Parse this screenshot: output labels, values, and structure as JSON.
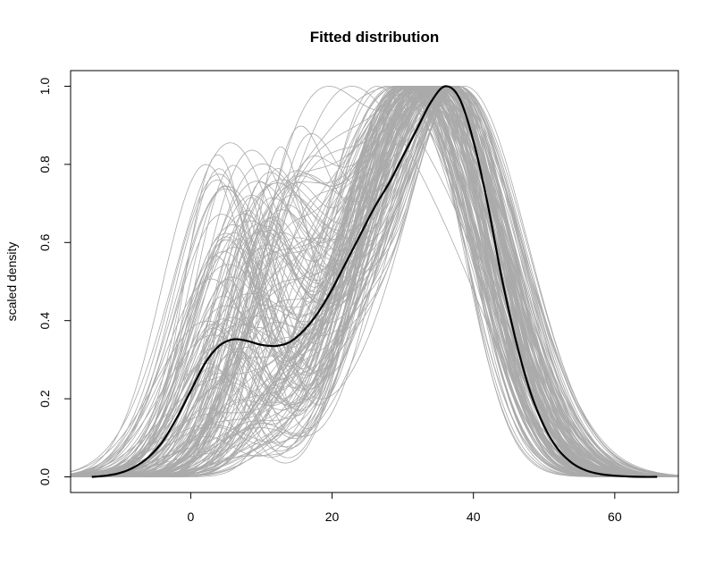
{
  "chart_data": {
    "type": "line",
    "title": "Fitted distribution",
    "xlabel": "",
    "ylabel": "scaled density",
    "xlim": [
      -17,
      69
    ],
    "ylim": [
      -0.04,
      1.04
    ],
    "x_ticks": [
      0,
      20,
      40,
      60
    ],
    "y_ticks": [
      0.0,
      0.2,
      0.4,
      0.6,
      0.8,
      1.0
    ],
    "x_tick_labels": [
      "0",
      "20",
      "40",
      "60"
    ],
    "y_tick_labels": [
      "0.0",
      "0.2",
      "0.4",
      "0.6",
      "0.8",
      "1.0"
    ],
    "grid": false,
    "legend": "none",
    "colors": {
      "fitted": "#000000",
      "samples": "#aaaaaa",
      "axis": "#000000"
    },
    "fitted_curve": {
      "x": [
        -14,
        -12,
        -10,
        -8,
        -6,
        -4,
        -2,
        0,
        2,
        4,
        6,
        8,
        10,
        12,
        14,
        16,
        18,
        20,
        22,
        24,
        26,
        28,
        30,
        32,
        34,
        36,
        38,
        40,
        42,
        44,
        46,
        48,
        50,
        52,
        54,
        56,
        58,
        60,
        62,
        64,
        66
      ],
      "y": [
        0.0,
        0.003,
        0.01,
        0.025,
        0.05,
        0.09,
        0.15,
        0.22,
        0.29,
        0.335,
        0.352,
        0.348,
        0.338,
        0.335,
        0.345,
        0.375,
        0.42,
        0.48,
        0.55,
        0.62,
        0.69,
        0.75,
        0.82,
        0.89,
        0.96,
        1.0,
        0.97,
        0.86,
        0.7,
        0.51,
        0.35,
        0.22,
        0.13,
        0.07,
        0.035,
        0.016,
        0.007,
        0.003,
        0.001,
        0.0,
        0.0
      ]
    },
    "sample_curves": {
      "count": 160,
      "color": "#aaaaaa",
      "peak_y": 1.0
    }
  }
}
